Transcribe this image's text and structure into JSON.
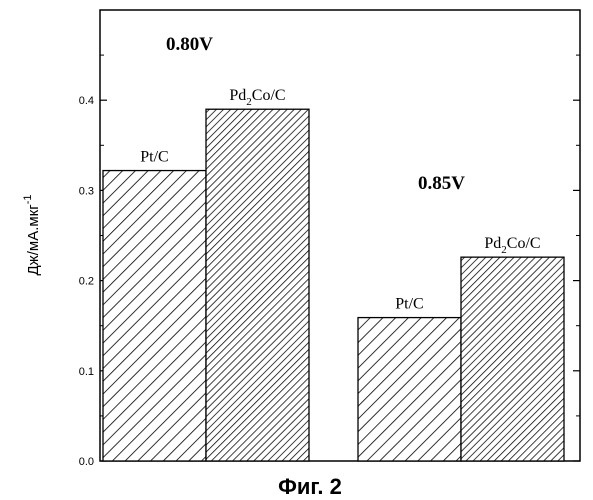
{
  "chart_data": {
    "type": "bar",
    "ylabel": "Дж/мА.мкг",
    "ylabel_superscript": "-1",
    "ylim": [
      0,
      0.5
    ],
    "yticks": [
      0.0,
      0.1,
      0.2,
      0.3,
      0.4
    ],
    "ytick_labels": [
      "0.0",
      "0.1",
      "0.2",
      "0.3",
      "0.4"
    ],
    "grid": false,
    "groups": [
      {
        "label": "0.80V",
        "bars": [
          {
            "label_main": "Pt/C",
            "label_sub": "",
            "label_rest": "",
            "value": 0.322,
            "pattern": "diag-wide"
          },
          {
            "label_main": "Pd",
            "label_sub": "2",
            "label_rest": "Co/C",
            "value": 0.39,
            "pattern": "diag-dense"
          }
        ]
      },
      {
        "label": "0.85V",
        "bars": [
          {
            "label_main": "Pt/C",
            "label_sub": "",
            "label_rest": "",
            "value": 0.159,
            "pattern": "diag-wide"
          },
          {
            "label_main": "Pd",
            "label_sub": "2",
            "label_rest": "Co/C",
            "value": 0.226,
            "pattern": "diag-dense"
          }
        ]
      }
    ]
  },
  "caption": "Фиг. 2"
}
